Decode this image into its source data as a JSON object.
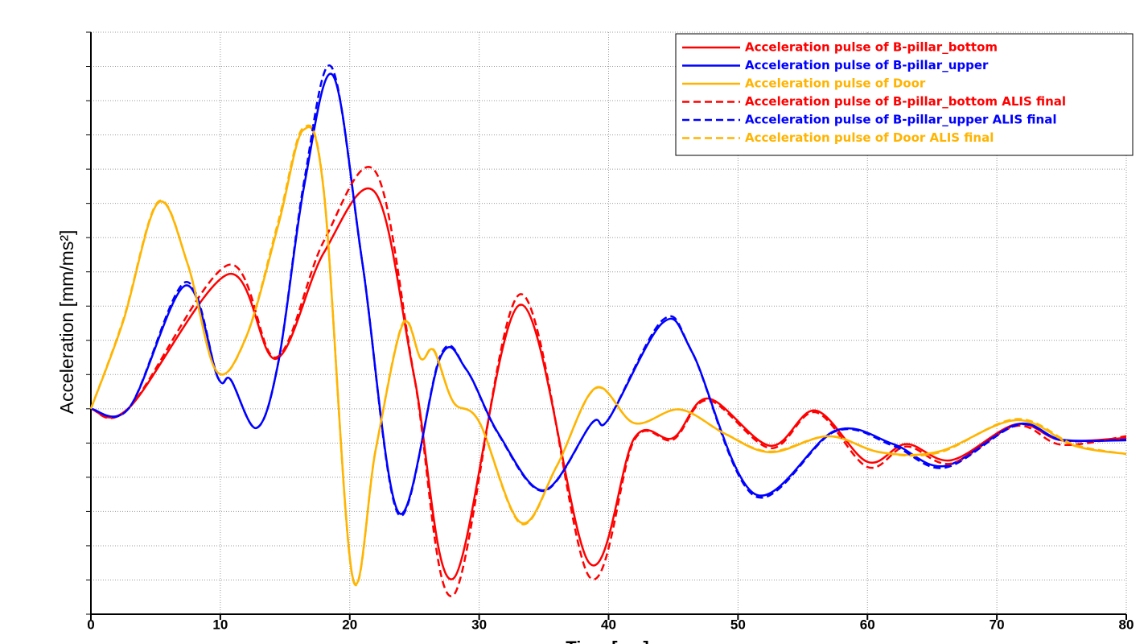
{
  "chart_data": {
    "type": "line",
    "y_label": "Acceleration [mm/ms²]",
    "x_label": "Time [ms]",
    "xlim": [
      0,
      80
    ],
    "xticks": [
      0,
      10,
      20,
      30,
      40,
      50,
      60,
      70,
      80
    ],
    "ylim": [
      -6,
      11
    ],
    "yticks": [
      -6,
      -5,
      -4,
      -3,
      -2,
      -1,
      0,
      1,
      2,
      3,
      4,
      5,
      6,
      7,
      8,
      9,
      10,
      11
    ],
    "ytick_labels": false,
    "grid": true,
    "legend": "upper right",
    "series": [
      {
        "name": "Acceleration pulse of B-pillar_bottom",
        "color": "#ff0000",
        "dash": false,
        "x": [
          0,
          3,
          10.6,
          14.3,
          18,
          22,
          25,
          28,
          33.2,
          38.5,
          42,
          45,
          47.7,
          52.5,
          56,
          60,
          63,
          66.5,
          71.5,
          75,
          80
        ],
        "values": [
          0,
          0.05,
          3.93,
          1.46,
          4.56,
          6.3,
          0.9,
          -4.96,
          3.04,
          -4.5,
          -0.85,
          -0.85,
          0.3,
          -1.08,
          -0.05,
          -1.55,
          -1.03,
          -1.5,
          -0.45,
          -0.92,
          -0.85
        ]
      },
      {
        "name": "Acceleration pulse of B-pillar_upper",
        "color": "#0000ff",
        "dash": false,
        "x": [
          0,
          3,
          7.3,
          9.8,
          10.8,
          12.8,
          14.5,
          16.5,
          18.7,
          21,
          23.8,
          27,
          29,
          31.5,
          35,
          38.7,
          40,
          44.2,
          46.5,
          51.3,
          57.5,
          62,
          66,
          71.6,
          75,
          80
        ],
        "values": [
          0,
          0.05,
          3.6,
          0.92,
          0.85,
          -0.56,
          1.39,
          6.56,
          9.74,
          4.2,
          -3.04,
          1.5,
          1.15,
          -0.73,
          -2.38,
          -0.42,
          -0.3,
          2.52,
          1.62,
          -2.49,
          -0.64,
          -1.03,
          -1.67,
          -0.45,
          -0.9,
          -0.92
        ]
      },
      {
        "name": "Acceleration pulse of Door",
        "color": "#ffb400",
        "dash": false,
        "x": [
          0,
          2.5,
          5.2,
          7.5,
          9.7,
          12,
          14.5,
          16.4,
          18,
          20.2,
          22,
          24.1,
          25.5,
          26.5,
          28,
          30,
          33.2,
          36,
          39,
          42,
          45.5,
          49,
          52.5,
          57,
          61,
          65.5,
          71.5,
          76,
          80
        ],
        "values": [
          0,
          2.56,
          6.02,
          4.2,
          1.1,
          2.1,
          5.4,
          8.14,
          6.33,
          -4.87,
          -1.2,
          2.47,
          1.46,
          1.7,
          0.2,
          -0.38,
          -3.32,
          -1.67,
          0.61,
          -0.42,
          -0.02,
          -0.73,
          -1.27,
          -0.8,
          -1.27,
          -1.25,
          -0.33,
          -1.08,
          -1.32
        ]
      },
      {
        "name": "Acceleration pulse of B-pillar_bottom ALIS final",
        "color": "#ff0000",
        "dash": true,
        "x": [
          0,
          3,
          10.6,
          14.3,
          18,
          22,
          25,
          28,
          33.2,
          38.5,
          42,
          45,
          47.7,
          52.5,
          56,
          60,
          63,
          66.5,
          71.5,
          75,
          80
        ],
        "values": [
          0,
          0.05,
          4.2,
          1.5,
          4.9,
          6.92,
          0.9,
          -5.45,
          3.35,
          -4.9,
          -0.9,
          -0.9,
          0.25,
          -1.15,
          -0.1,
          -1.7,
          -1.1,
          -1.6,
          -0.5,
          -1.05,
          -0.8
        ]
      },
      {
        "name": "Acceleration pulse of B-pillar_upper ALIS final",
        "color": "#0000ff",
        "dash": true,
        "x": [
          0,
          3,
          7.3,
          9.8,
          10.8,
          12.8,
          14.5,
          16.5,
          18.6,
          21,
          23.8,
          27,
          29,
          31.5,
          35,
          38.7,
          40,
          44.2,
          46.5,
          51.3,
          57.5,
          62,
          66,
          71.6,
          75,
          80
        ],
        "values": [
          0,
          0.05,
          3.7,
          0.92,
          0.85,
          -0.56,
          1.4,
          6.7,
          9.98,
          4.2,
          -3.1,
          1.55,
          1.15,
          -0.75,
          -2.4,
          -0.42,
          -0.3,
          2.6,
          1.62,
          -2.55,
          -0.66,
          -1.08,
          -1.72,
          -0.47,
          -0.92,
          -0.9
        ]
      },
      {
        "name": "Acceleration pulse of Door ALIS final",
        "color": "#ffb400",
        "dash": true,
        "x": [
          0,
          2.5,
          5.2,
          7.5,
          9.7,
          12,
          14.5,
          16.4,
          18,
          20.2,
          22,
          24.1,
          25.5,
          26.5,
          28,
          30,
          33.2,
          36,
          39,
          42,
          45.5,
          49,
          52.5,
          57,
          61,
          65.5,
          71.5,
          76,
          80
        ],
        "values": [
          0,
          2.6,
          6.05,
          4.2,
          1.1,
          2.1,
          5.5,
          8.2,
          6.35,
          -4.9,
          -1.2,
          2.5,
          1.46,
          1.72,
          0.2,
          -0.38,
          -3.35,
          -1.67,
          0.6,
          -0.42,
          -0.02,
          -0.73,
          -1.25,
          -0.8,
          -1.27,
          -1.28,
          -0.3,
          -1.05,
          -1.32
        ]
      }
    ]
  }
}
